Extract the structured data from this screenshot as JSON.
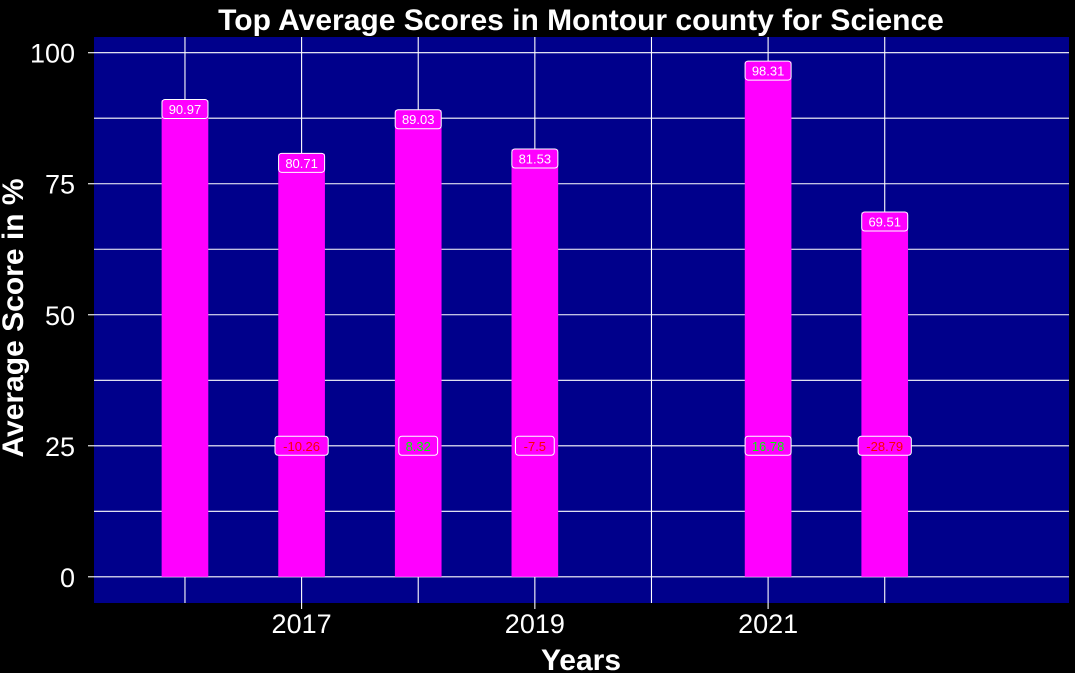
{
  "chart_data": {
    "type": "bar",
    "title": "Top Average Scores in Montour county for Science",
    "xlabel": "Years",
    "ylabel": "Average Score in %",
    "x": [
      2016,
      2017,
      2018,
      2019,
      2021,
      2022
    ],
    "values": [
      90.97,
      80.71,
      89.03,
      81.53,
      98.31,
      69.51
    ],
    "value_labels": [
      "90.97",
      "80.71",
      "89.03",
      "81.53",
      "98.31",
      "69.51"
    ],
    "changes": [
      null,
      -10.26,
      8.32,
      -7.5,
      16.78,
      -28.79
    ],
    "change_labels": [
      null,
      "-10.26",
      "8.32",
      "-7.5",
      "16.78",
      "-28.79"
    ],
    "change_label_y": 25,
    "x_ticks": [
      2017,
      2019,
      2021
    ],
    "x_tick_labels": [
      "2017",
      "2019",
      "2021"
    ],
    "y_ticks": [
      0,
      25,
      50,
      75,
      100
    ],
    "y_tick_labels": [
      "0",
      "25",
      "50",
      "75",
      "100"
    ],
    "xlim": [
      2015.22,
      2023.58
    ],
    "ylim": [
      -5,
      103
    ],
    "grid": true,
    "legend": "none",
    "colors": {
      "background": "#000000",
      "panel": "#00008b",
      "bar": "#ff00ff",
      "grid": "#ffffff",
      "text": "#ffffff",
      "positive_change": "#00ff00",
      "negative_change": "#ff0000"
    }
  }
}
